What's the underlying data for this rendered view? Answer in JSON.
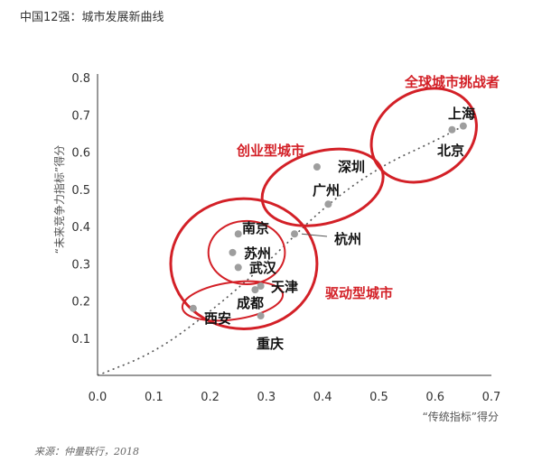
{
  "title": "中国12强：城市发展新曲线",
  "source": "来源：仲量联行，2018",
  "colors": {
    "accent": "#d32027",
    "point": "#9e9e9e",
    "curve": "#555555"
  },
  "chart_data": {
    "type": "scatter",
    "xlabel": "“传统指标”得分",
    "ylabel": "“未来竞争力指标”得分",
    "xlim": [
      0,
      0.7
    ],
    "ylim": [
      0,
      0.8
    ],
    "xticks": [
      "0.0",
      "0.1",
      "0.2",
      "0.3",
      "0.4",
      "0.5",
      "0.6",
      "0.7"
    ],
    "yticks": [
      "0.1",
      "0.2",
      "0.3",
      "0.4",
      "0.5",
      "0.6",
      "0.7",
      "0.8"
    ],
    "points": [
      {
        "name": "上海",
        "x": 0.65,
        "y": 0.67
      },
      {
        "name": "北京",
        "x": 0.63,
        "y": 0.66
      },
      {
        "name": "深圳",
        "x": 0.39,
        "y": 0.56
      },
      {
        "name": "广州",
        "x": 0.41,
        "y": 0.46
      },
      {
        "name": "杭州",
        "x": 0.35,
        "y": 0.38
      },
      {
        "name": "南京",
        "x": 0.25,
        "y": 0.38
      },
      {
        "name": "苏州",
        "x": 0.24,
        "y": 0.33
      },
      {
        "name": "武汉",
        "x": 0.25,
        "y": 0.29
      },
      {
        "name": "天津",
        "x": 0.29,
        "y": 0.24
      },
      {
        "name": "成都",
        "x": 0.28,
        "y": 0.23
      },
      {
        "name": "西安",
        "x": 0.17,
        "y": 0.18
      },
      {
        "name": "重庆",
        "x": 0.29,
        "y": 0.16
      }
    ],
    "groups": [
      {
        "name": "全球城市挑战者",
        "cx": 0.58,
        "cy": 0.645,
        "rx": 0.098,
        "ry": 0.118,
        "rot": -30
      },
      {
        "name": "创业型城市",
        "cx": 0.4,
        "cy": 0.505,
        "rx": 0.11,
        "ry": 0.097,
        "rot": -15
      },
      {
        "name": "驱动型城市",
        "cx": 0.26,
        "cy": 0.3,
        "rx": 0.13,
        "ry": 0.175,
        "rot": 0
      }
    ],
    "subgroups": [
      {
        "cx": 0.265,
        "cy": 0.33,
        "rx": 0.068,
        "ry": 0.085,
        "rot": 0
      },
      {
        "cx": 0.24,
        "cy": 0.2,
        "rx": 0.09,
        "ry": 0.05,
        "rot": -8
      }
    ],
    "curve": [
      [
        0.0,
        0.0
      ],
      [
        0.1,
        0.06
      ],
      [
        0.2,
        0.17
      ],
      [
        0.3,
        0.3
      ],
      [
        0.4,
        0.45
      ],
      [
        0.5,
        0.56
      ],
      [
        0.6,
        0.63
      ],
      [
        0.65,
        0.67
      ]
    ]
  }
}
